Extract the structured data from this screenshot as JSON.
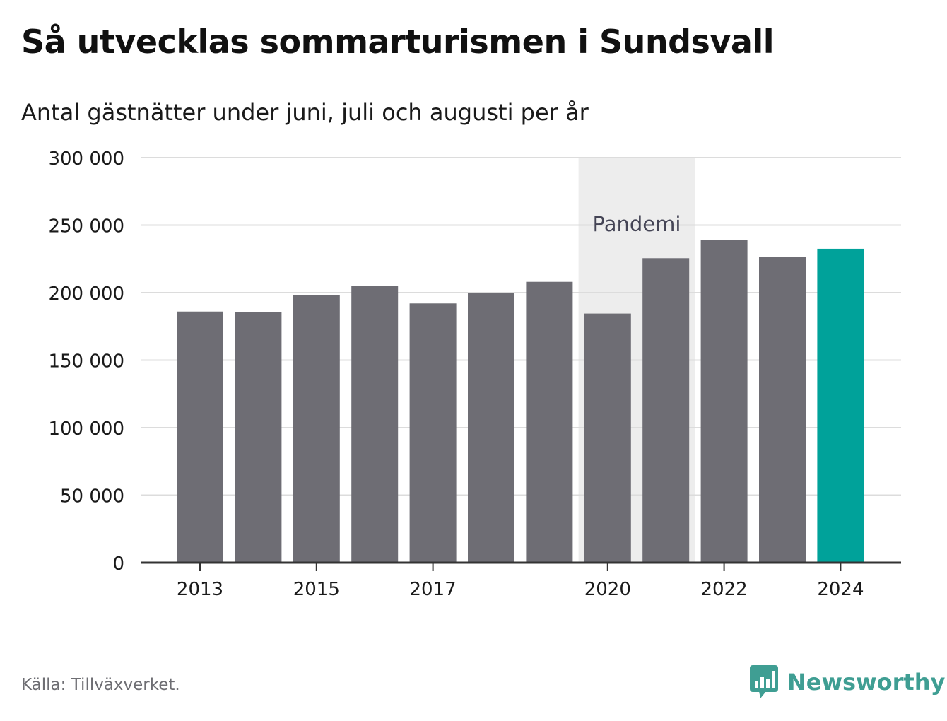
{
  "header": {
    "title": "Så utvecklas sommarturismen i Sundsvall",
    "subtitle": "Antal gästnätter under juni, juli och augusti per år"
  },
  "footer": {
    "source": "Källa: Tillväxverket.",
    "brand": "Newsworthy",
    "brand_icon": "bar-chart-bubble-icon"
  },
  "colors": {
    "bar": "#6e6d74",
    "highlight": "#00a29a",
    "band": "#ededed",
    "grid": "#dcdcdc",
    "axis": "#333333",
    "brand": "#3f9e93"
  },
  "chart_data": {
    "type": "bar",
    "categories": [
      "2013",
      "2014",
      "2015",
      "2016",
      "2017",
      "2018",
      "2019",
      "2020",
      "2021",
      "2022",
      "2023",
      "2024"
    ],
    "values": [
      186000,
      185500,
      198000,
      205000,
      192000,
      200000,
      208000,
      184500,
      225500,
      239000,
      226500,
      232500
    ],
    "highlight_index": 11,
    "x_tick_labels": [
      "2013",
      "2015",
      "2017",
      "2020",
      "2022",
      "2024"
    ],
    "y_ticks": [
      0,
      50000,
      100000,
      150000,
      200000,
      250000,
      300000
    ],
    "y_tick_labels": [
      "0",
      "50 000",
      "100 000",
      "150 000",
      "200 000",
      "250 000",
      "300 000"
    ],
    "ylim": [
      0,
      300000
    ],
    "annotation": {
      "label": "Pandemi",
      "from": "2020",
      "to": "2021"
    },
    "grid": true,
    "legend": "none",
    "xlabel": "",
    "ylabel": ""
  }
}
